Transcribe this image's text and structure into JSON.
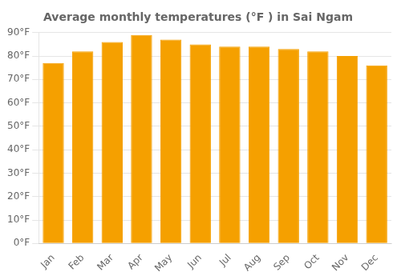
{
  "chart_data": {
    "type": "bar",
    "title": "Average monthly temperatures (°F ) in Sai Ngam",
    "categories": [
      "Jan",
      "Feb",
      "Mar",
      "Apr",
      "May",
      "Jun",
      "Jul",
      "Aug",
      "Sep",
      "Oct",
      "Nov",
      "Dec"
    ],
    "values": [
      77,
      82,
      86,
      89,
      87,
      85,
      84,
      84,
      83,
      82,
      80,
      76
    ],
    "color": "#F5A000",
    "ylim": [
      0,
      90
    ],
    "yticks": [
      {
        "value": 0,
        "label": "0°F"
      },
      {
        "value": 10,
        "label": "10°F"
      },
      {
        "value": 20,
        "label": "20°F"
      },
      {
        "value": 30,
        "label": "30°F"
      },
      {
        "value": 40,
        "label": "40°F"
      },
      {
        "value": 50,
        "label": "50°F"
      },
      {
        "value": 60,
        "label": "60°F"
      },
      {
        "value": 70,
        "label": "70°F"
      },
      {
        "value": 80,
        "label": "80°F"
      },
      {
        "value": 90,
        "label": "90°F"
      }
    ],
    "grid": true
  }
}
